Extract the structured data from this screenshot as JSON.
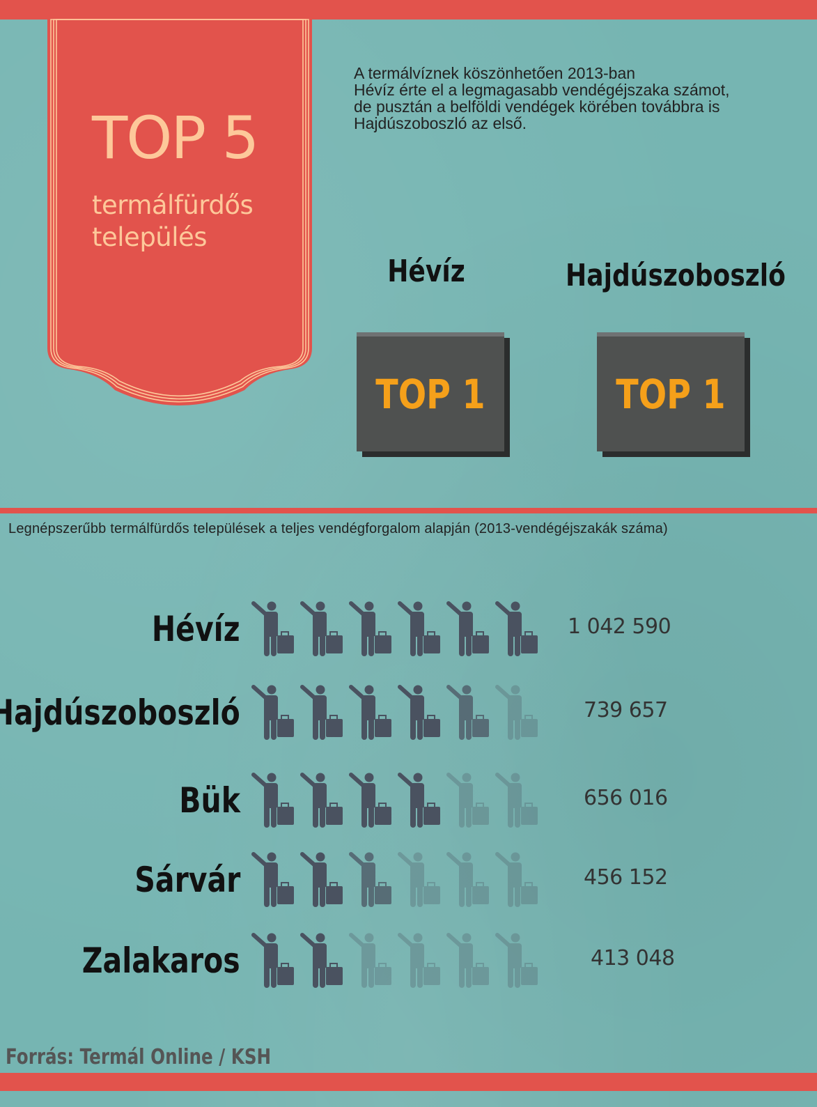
{
  "banner": {
    "title": "TOP 5",
    "subtitle_line1": "termálfürdős",
    "subtitle_line2": "település",
    "color": "#e2534c",
    "text_color": "#fdc89a"
  },
  "intro": "A termálvíznek köszönhetően 2013-ban\nHévíz érte el a legmagasabb vendégéjszaka számot,\nde pusztán a belföldi vendégek körében továbbra is\nHajdúszoboszló az első.",
  "highlights": [
    {
      "city": "Hévíz",
      "badge": "TOP 1"
    },
    {
      "city": "Hajdúszoboszló",
      "badge": "TOP 1"
    }
  ],
  "colors": {
    "background": "#76b5b2",
    "accent": "#e2534c",
    "badge_text": "#f5a01a",
    "icon": "#4a5260"
  },
  "chart_data": {
    "type": "bar",
    "style": "pictogram",
    "icon": "traveler-with-briefcase-icon",
    "icons_per_row": 6,
    "title": "Legnépszerűbb termálfürdős települések a teljes vendégforgalom alapján (2013-vendégéjszakák száma)",
    "categories": [
      "Hévíz",
      "Hajdúszoboszló",
      "Bük",
      "Sárvár",
      "Zalakaros"
    ],
    "values": [
      1042590,
      739657,
      656016,
      456152,
      413048
    ],
    "value_labels": [
      "1 042 590",
      "739 657",
      "656 016",
      "456 152",
      "413 048"
    ],
    "icons_filled": [
      6,
      4.5,
      4,
      2.5,
      2
    ]
  },
  "source": "Forrás: Termál Online / KSH"
}
